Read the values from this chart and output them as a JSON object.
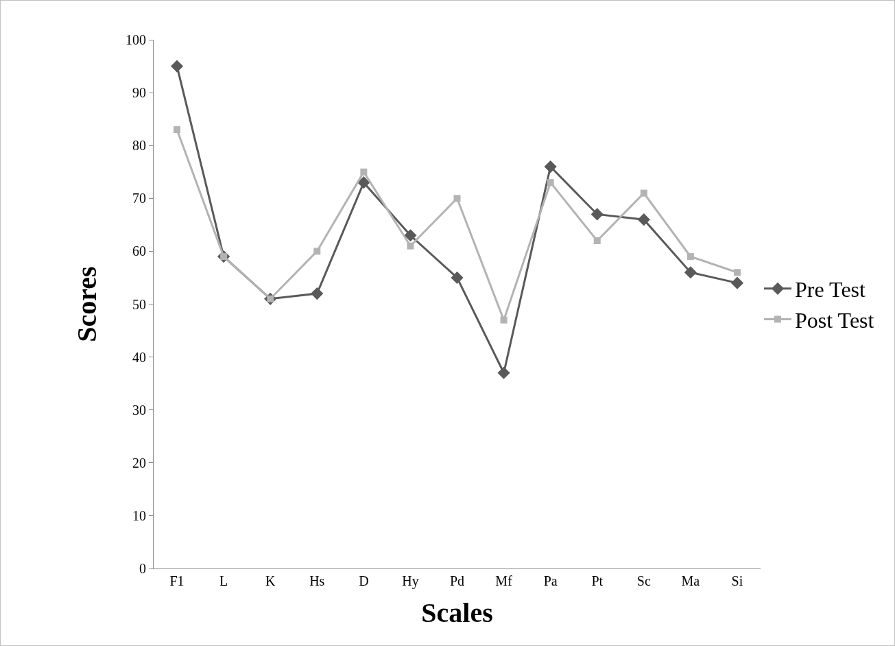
{
  "chart_data": {
    "type": "line",
    "xlabel": "Scales",
    "ylabel": "Scores",
    "categories": [
      "F1",
      "L",
      "K",
      "Hs",
      "D",
      "Hy",
      "Pd",
      "Mf",
      "Pa",
      "Pt",
      "Sc",
      "Ma",
      "Si"
    ],
    "series": [
      {
        "name": "Pre Test",
        "color": "#595959",
        "marker": "diamond",
        "values": [
          95,
          59,
          51,
          52,
          73,
          63,
          55,
          37,
          76,
          67,
          66,
          56,
          54
        ]
      },
      {
        "name": "Post Test",
        "color": "#b3b3b3",
        "marker": "square",
        "values": [
          83,
          59,
          51,
          60,
          75,
          61,
          70,
          47,
          73,
          62,
          71,
          59,
          56
        ]
      }
    ],
    "ylim": [
      0,
      100
    ],
    "yticks": [
      0,
      10,
      20,
      30,
      40,
      50,
      60,
      70,
      80,
      90,
      100
    ],
    "grid": false,
    "legend": "right",
    "line_style": "solid"
  }
}
